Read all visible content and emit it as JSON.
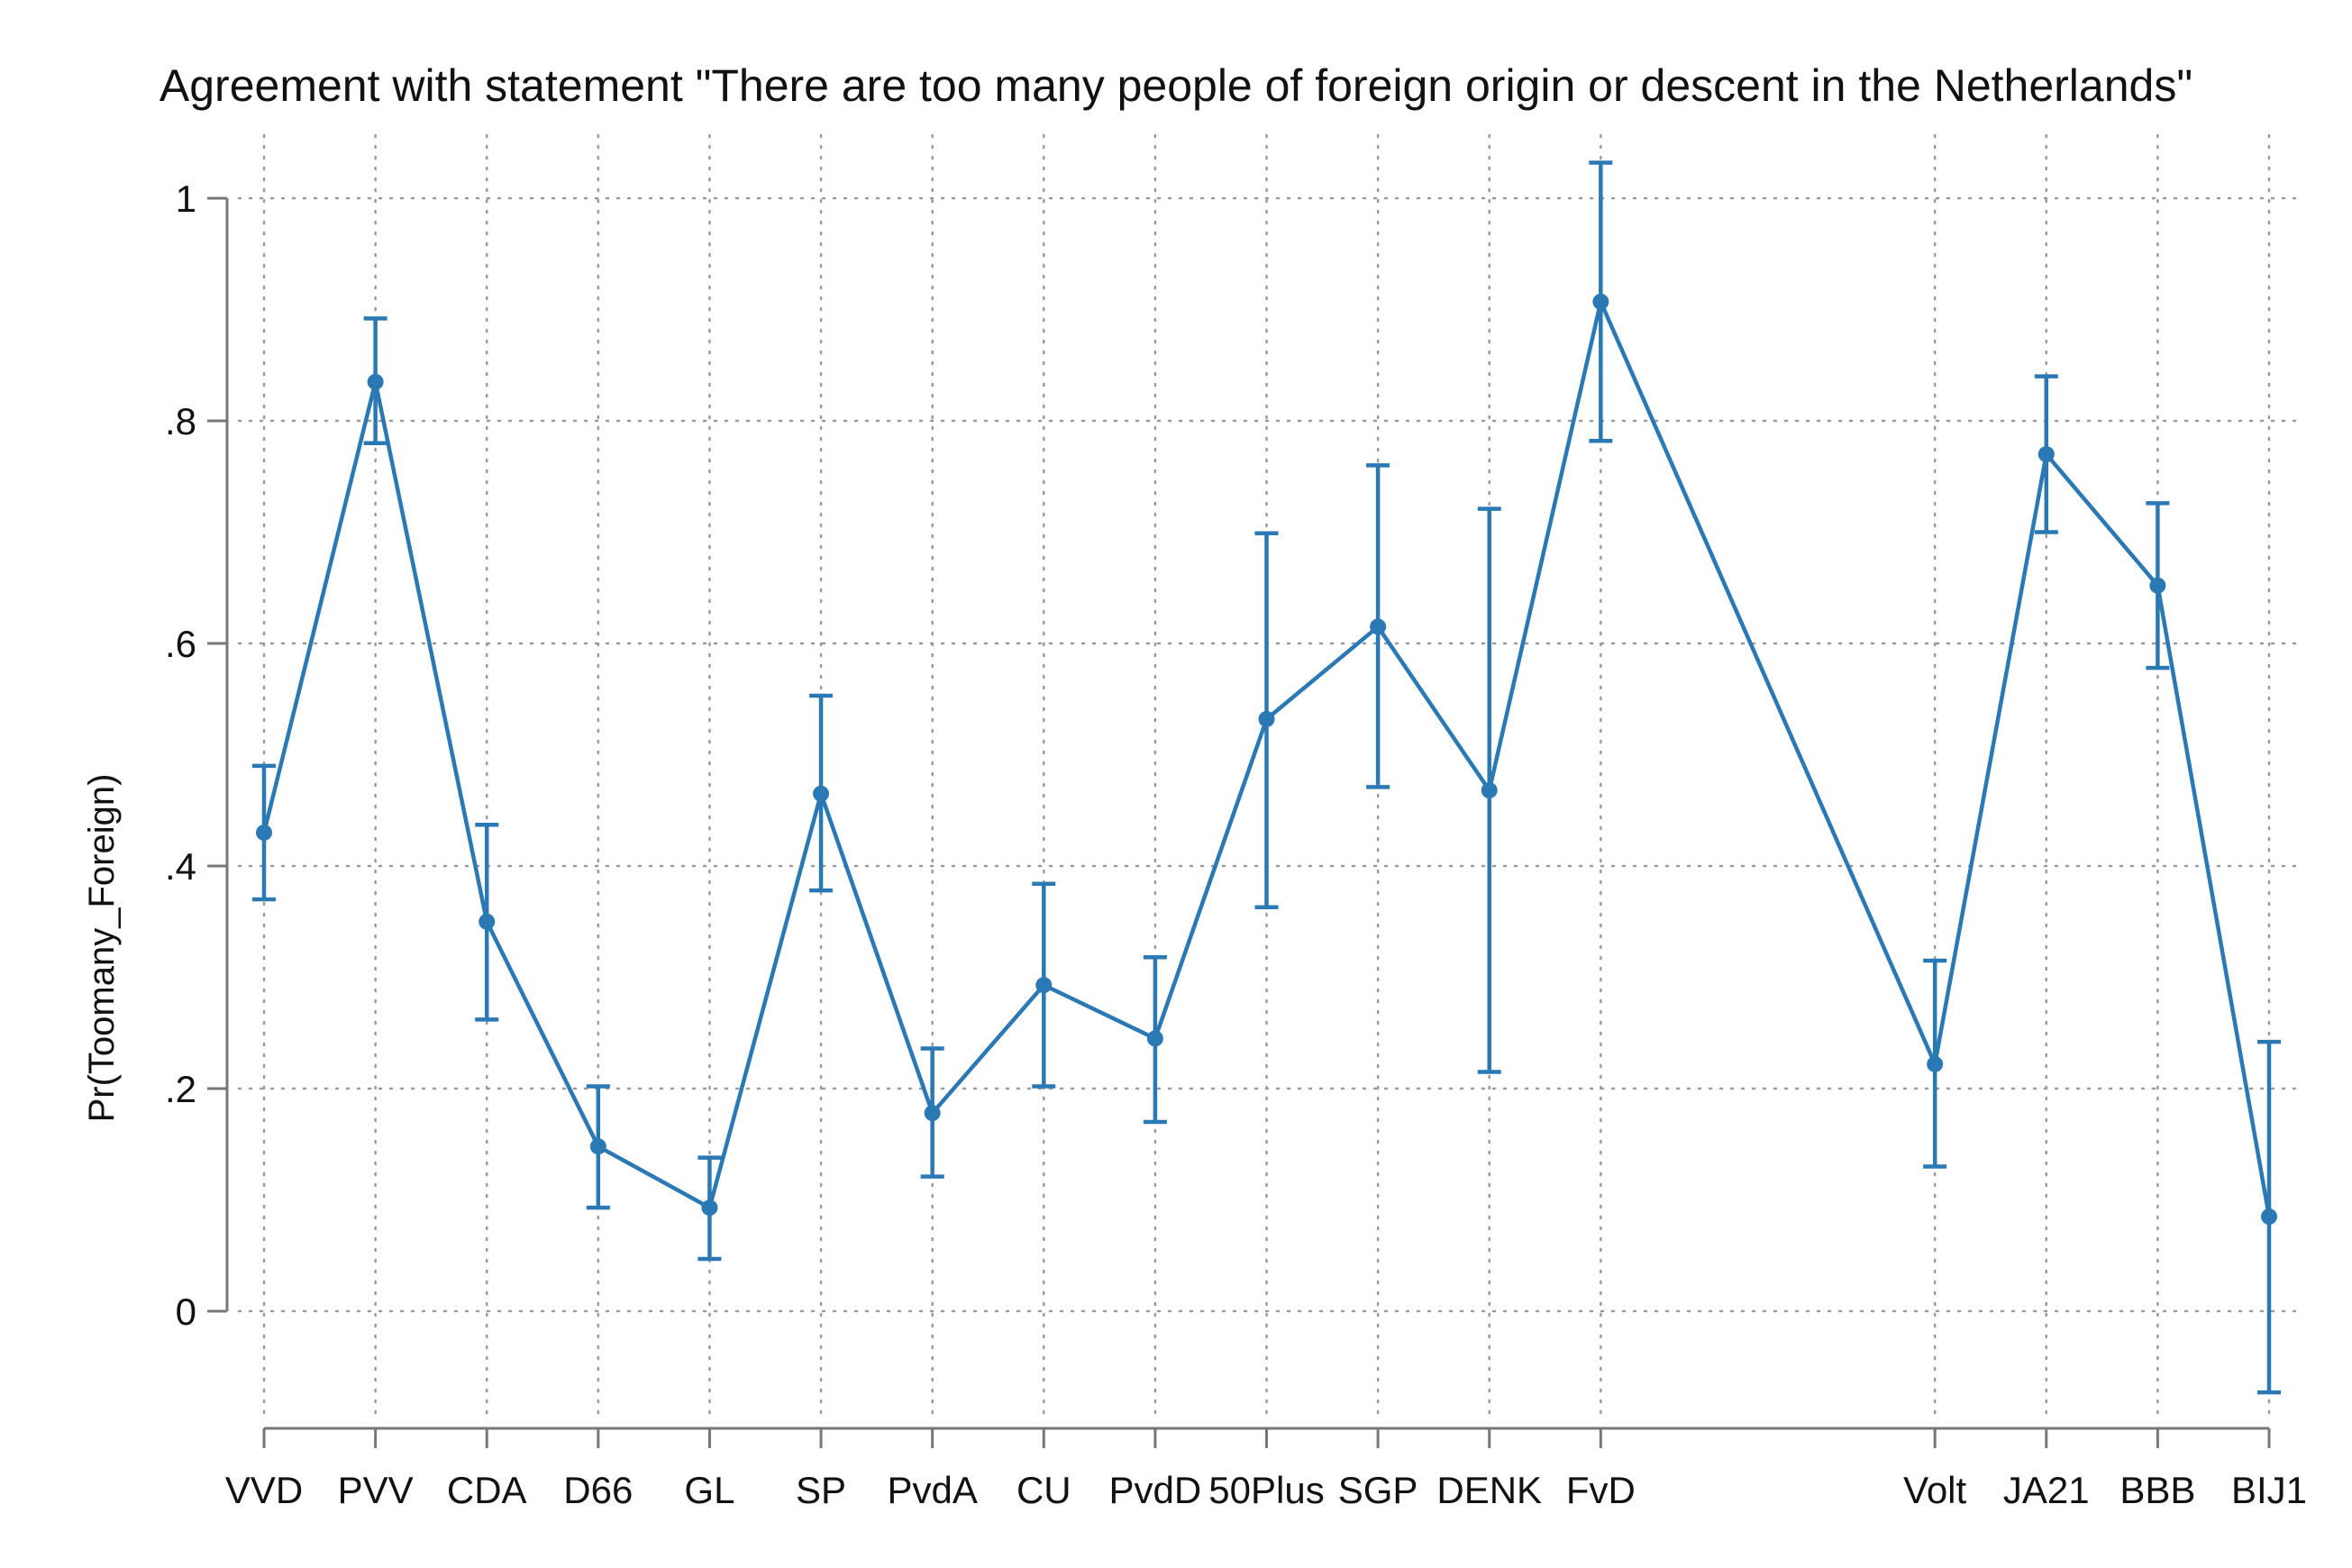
{
  "chart_data": {
    "type": "line",
    "title": "Agreement with statement \"There are too many people of foreign origin or descent in the Netherlands\"",
    "xlabel": "",
    "ylabel": "Pr(Toomany_Foreign)",
    "ylim": [
      -0.1,
      1.05
    ],
    "yticks": [
      {
        "value": 0,
        "label": "0"
      },
      {
        "value": 0.2,
        "label": ".2"
      },
      {
        "value": 0.4,
        "label": ".4"
      },
      {
        "value": 0.6,
        "label": ".6"
      },
      {
        "value": 0.8,
        "label": ".8"
      },
      {
        "value": 1,
        "label": "1"
      }
    ],
    "x_positions": [
      1,
      2,
      3,
      4,
      5,
      6,
      7,
      8,
      9,
      10,
      11,
      12,
      13,
      16,
      17,
      18,
      19
    ],
    "xlim": [
      1,
      19
    ],
    "categories": [
      "VVD",
      "PVV",
      "CDA",
      "D66",
      "GL",
      "SP",
      "PvdA",
      "CU",
      "PvdD",
      "50Plus",
      "SGP",
      "DENK",
      "FvD",
      "Volt",
      "JA21",
      "BBB",
      "BIJ1"
    ],
    "series": [
      {
        "values": [
          0.43,
          0.835,
          0.35,
          0.148,
          0.093,
          0.465,
          0.178,
          0.293,
          0.245,
          0.532,
          0.615,
          0.468,
          0.907,
          0.222,
          0.77,
          0.652,
          0.085
        ],
        "lower": [
          0.37,
          0.78,
          0.262,
          0.093,
          0.047,
          0.378,
          0.121,
          0.202,
          0.17,
          0.363,
          0.471,
          0.215,
          0.782,
          0.13,
          0.7,
          0.578,
          -0.073
        ],
        "upper": [
          0.49,
          0.892,
          0.437,
          0.202,
          0.138,
          0.553,
          0.236,
          0.384,
          0.318,
          0.699,
          0.76,
          0.721,
          1.032,
          0.315,
          0.84,
          0.726,
          0.242
        ],
        "color": "#2a78b4"
      }
    ],
    "grid": true,
    "grid_style": "dotted",
    "legend": "none"
  }
}
